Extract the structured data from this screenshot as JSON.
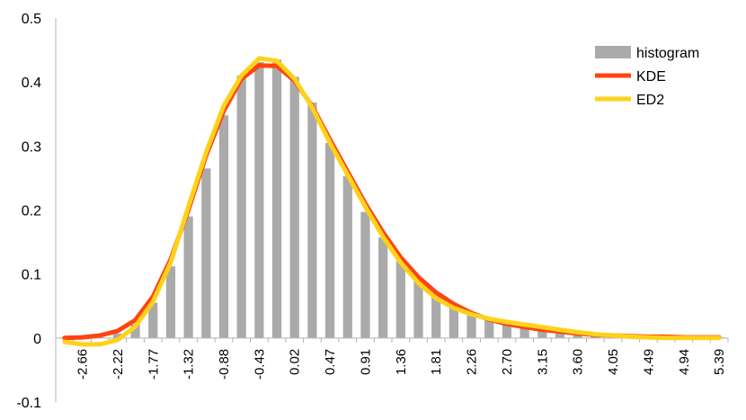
{
  "chart_data": {
    "type": "bar+line",
    "title": "",
    "xlabel": "",
    "ylabel": "",
    "ylim": [
      -0.1,
      0.5
    ],
    "yticks": [
      "-0.1",
      "0",
      "0.1",
      "0.2",
      "0.3",
      "0.4",
      "0.5"
    ],
    "grid": false,
    "legend_position": "top-right",
    "x_tick_labels": [
      "-2.66",
      "-2.22",
      "-1.77",
      "-1.32",
      "-0.88",
      "-0.43",
      "0.02",
      "0.47",
      "0.91",
      "1.36",
      "1.81",
      "2.26",
      "2.70",
      "3.15",
      "3.60",
      "4.05",
      "4.49",
      "4.94",
      "5.39"
    ],
    "x": [
      -2.88,
      -2.66,
      -2.44,
      -2.22,
      -2.0,
      -1.77,
      -1.55,
      -1.32,
      -1.1,
      -0.88,
      -0.66,
      -0.43,
      -0.21,
      0.02,
      0.24,
      0.47,
      0.69,
      0.91,
      1.14,
      1.36,
      1.59,
      1.81,
      2.03,
      2.26,
      2.48,
      2.7,
      2.92,
      3.15,
      3.37,
      3.6,
      3.82,
      4.05,
      4.27,
      4.49,
      4.72,
      4.94,
      5.16,
      5.39
    ],
    "series": [
      {
        "name": "histogram",
        "kind": "bar",
        "color": "#aaaaaa",
        "values": [
          0,
          0,
          0.001,
          0.007,
          0.021,
          0.055,
          0.112,
          0.19,
          0.265,
          0.348,
          0.41,
          0.431,
          0.435,
          0.408,
          0.368,
          0.305,
          0.253,
          0.197,
          0.157,
          0.12,
          0.092,
          0.07,
          0.052,
          0.038,
          0.029,
          0.022,
          0.016,
          0.012,
          0.008,
          0.006,
          0.004,
          0.003,
          0.002,
          0.002,
          0.001,
          0.001,
          0.001,
          0.001
        ]
      },
      {
        "name": "KDE",
        "kind": "line",
        "color": "#ff4411",
        "values": [
          0,
          0.001,
          0.004,
          0.011,
          0.028,
          0.065,
          0.123,
          0.2,
          0.285,
          0.355,
          0.405,
          0.426,
          0.425,
          0.402,
          0.362,
          0.31,
          0.26,
          0.21,
          0.165,
          0.126,
          0.095,
          0.071,
          0.053,
          0.039,
          0.029,
          0.022,
          0.017,
          0.013,
          0.01,
          0.007,
          0.005,
          0.004,
          0.003,
          0.002,
          0.002,
          0.001,
          0.001,
          0.001
        ]
      },
      {
        "name": "ED2",
        "kind": "line",
        "color": "#ffd21a",
        "values": [
          -0.006,
          -0.01,
          -0.01,
          -0.003,
          0.018,
          0.057,
          0.118,
          0.205,
          0.29,
          0.363,
          0.41,
          0.437,
          0.433,
          0.405,
          0.36,
          0.305,
          0.255,
          0.205,
          0.158,
          0.118,
          0.086,
          0.062,
          0.047,
          0.037,
          0.03,
          0.025,
          0.021,
          0.017,
          0.013,
          0.009,
          0.006,
          0.004,
          0.002,
          0.001,
          0,
          0,
          0,
          0
        ]
      }
    ]
  }
}
